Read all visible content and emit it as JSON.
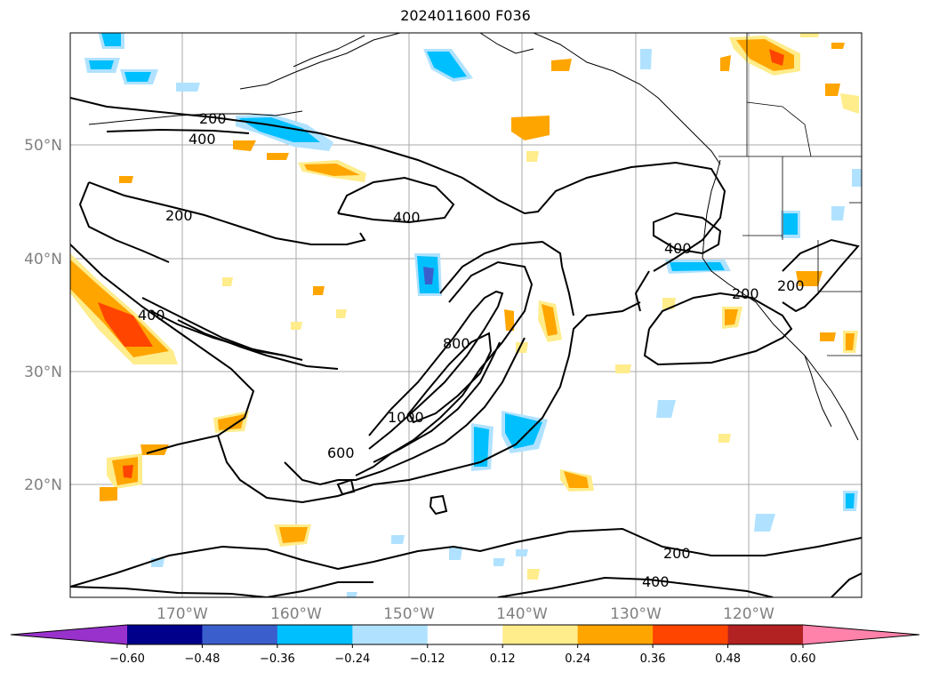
{
  "title": "2024011600 F036",
  "map": {
    "lat_labels": [
      "50°N",
      "40°N",
      "30°N",
      "20°N"
    ],
    "lon_labels": [
      "170°W",
      "160°W",
      "150°W",
      "140°W",
      "130°W",
      "120°W"
    ],
    "contour_labels": [
      "200",
      "400",
      "200",
      "400",
      "400",
      "600",
      "800",
      "1000",
      "400",
      "200",
      "200",
      "200",
      "400"
    ],
    "colors": {
      "contour": "#000000",
      "grid": "#a0a0a0",
      "coast": "#000000"
    }
  },
  "colorbar": {
    "ticks": [
      "−0.60",
      "−0.48",
      "−0.36",
      "−0.24",
      "−0.12",
      "0.12",
      "0.24",
      "0.36",
      "0.48",
      "0.60"
    ],
    "colors": [
      "#9932cc",
      "#00008b",
      "#3a5fcd",
      "#00bfff",
      "#b0e2ff",
      "#ffffff",
      "#ffec8b",
      "#ffa500",
      "#ff4500",
      "#b22222",
      "#ff82ab"
    ]
  }
}
